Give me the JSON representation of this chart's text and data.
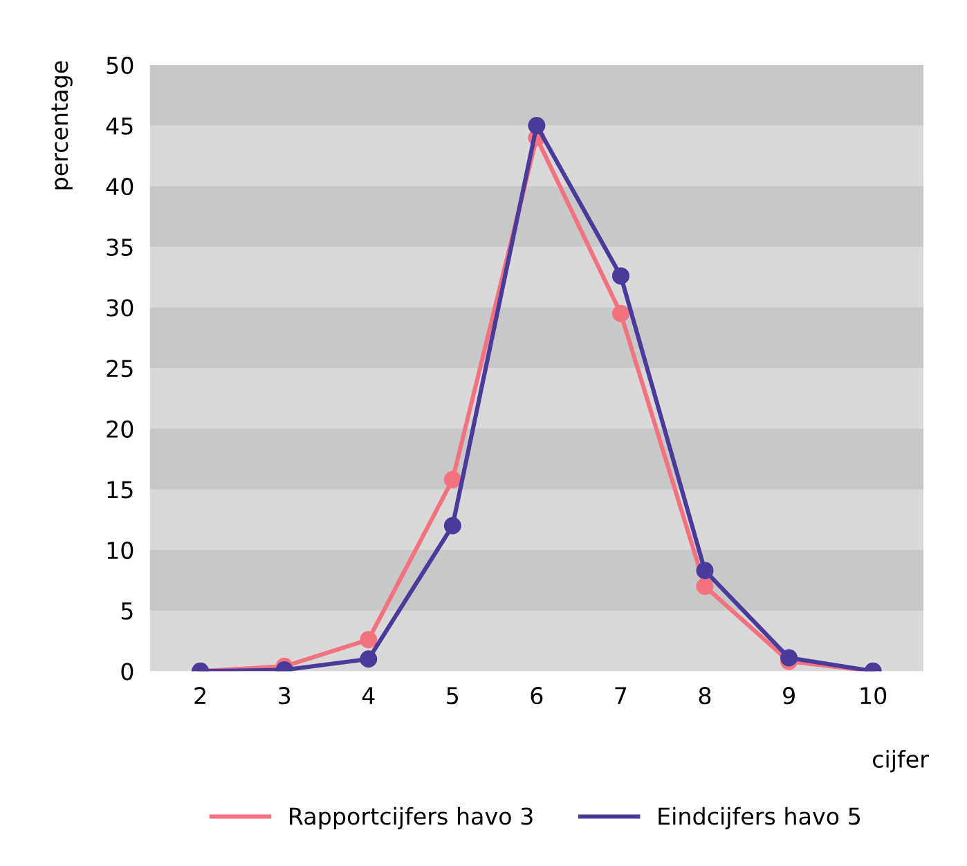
{
  "chart_data": {
    "type": "line",
    "xlabel": "cijfer",
    "ylabel": "percentage",
    "x": [
      2,
      3,
      4,
      5,
      6,
      7,
      8,
      9,
      10
    ],
    "series": [
      {
        "name": "Rapportcijfers havo 3",
        "color": "#f2737f",
        "values": [
          0,
          0.4,
          2.6,
          15.8,
          44,
          29.5,
          7,
          0.8,
          0
        ]
      },
      {
        "name": "Eindcijfers havo 5",
        "color": "#4a3a9a",
        "values": [
          0,
          0.1,
          1,
          12,
          45,
          32.6,
          8.3,
          1.1,
          0
        ]
      }
    ],
    "xlim": [
      1.4,
      10.6
    ],
    "xticks": [
      2,
      3,
      4,
      5,
      6,
      7,
      8,
      9,
      10
    ],
    "ylim": [
      0,
      50
    ],
    "yticks": [
      0,
      5,
      10,
      15,
      20,
      25,
      30,
      35,
      40,
      45,
      50
    ],
    "bands": [
      {
        "axis": "y",
        "from": 5,
        "to": 10,
        "color": "#c8c8c8"
      },
      {
        "axis": "y",
        "from": 15,
        "to": 20,
        "color": "#c8c8c8"
      },
      {
        "axis": "y",
        "from": 25,
        "to": 30,
        "color": "#c8c8c8"
      },
      {
        "axis": "y",
        "from": 35,
        "to": 40,
        "color": "#c8c8c8"
      },
      {
        "axis": "y",
        "from": 45,
        "to": 50,
        "color": "#c8c8c8"
      }
    ],
    "legend": "bottom",
    "marker": "circle",
    "line_style": "solid"
  }
}
